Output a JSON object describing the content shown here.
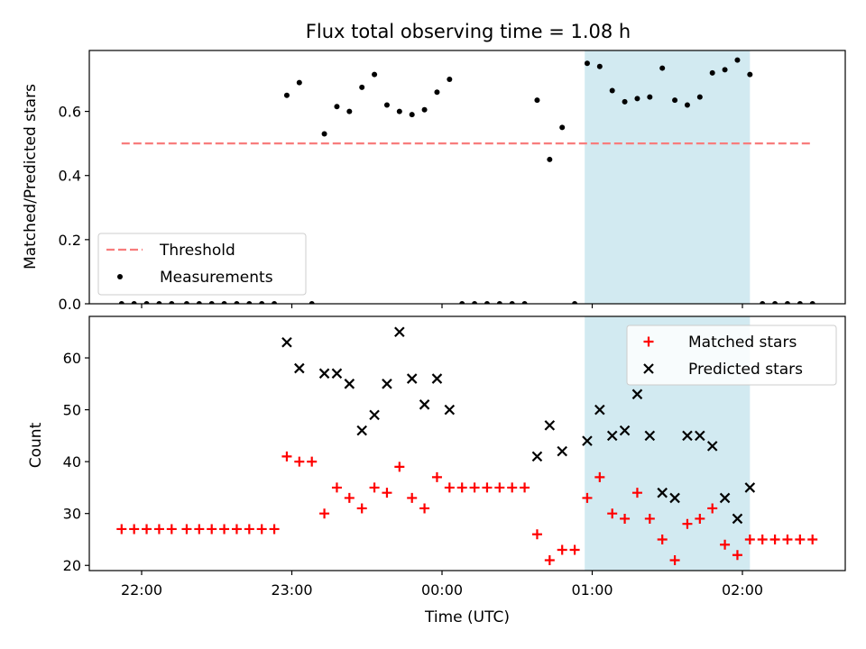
{
  "title": "Flux total observing time = 1.08 h",
  "colors": {
    "threshold": "#f87c7c",
    "measurement": "#000000",
    "matched": "#ff0000",
    "predicted": "#000000",
    "shade": "#add8e6"
  },
  "chart_data": [
    {
      "type": "scatter",
      "ylabel": "Matched/Predicted stars",
      "ylim": [
        0,
        0.79
      ],
      "yticks": [
        "0.0",
        "0.2",
        "0.4",
        "0.6"
      ],
      "legend_position": "lower-left",
      "shaded_interval": [
        "00:57",
        "02:03"
      ],
      "threshold": {
        "name": "Threshold",
        "x_range": [
          "21:52",
          "02:28"
        ],
        "value": 0.5
      },
      "series": [
        {
          "name": "Measurements",
          "points": [
            [
              "21:52",
              0
            ],
            [
              "21:57",
              0
            ],
            [
              "22:02",
              0
            ],
            [
              "22:07",
              0
            ],
            [
              "22:12",
              0
            ],
            [
              "22:18",
              0
            ],
            [
              "22:23",
              0
            ],
            [
              "22:28",
              0
            ],
            [
              "22:33",
              0
            ],
            [
              "22:38",
              0
            ],
            [
              "22:43",
              0
            ],
            [
              "22:48",
              0
            ],
            [
              "22:53",
              0
            ],
            [
              "22:58",
              0.65
            ],
            [
              "23:03",
              0.69
            ],
            [
              "23:08",
              0
            ],
            [
              "23:13",
              0.53
            ],
            [
              "23:18",
              0.615
            ],
            [
              "23:23",
              0.6
            ],
            [
              "23:28",
              0.675
            ],
            [
              "23:33",
              0.715
            ],
            [
              "23:38",
              0.62
            ],
            [
              "23:43",
              0.6
            ],
            [
              "23:48",
              0.59
            ],
            [
              "23:53",
              0.605
            ],
            [
              "23:58",
              0.66
            ],
            [
              "00:03",
              0.7
            ],
            [
              "00:08",
              0
            ],
            [
              "00:13",
              0
            ],
            [
              "00:18",
              0
            ],
            [
              "00:23",
              0
            ],
            [
              "00:28",
              0
            ],
            [
              "00:33",
              0
            ],
            [
              "00:38",
              0.635
            ],
            [
              "00:43",
              0.45
            ],
            [
              "00:48",
              0.55
            ],
            [
              "00:53",
              0
            ],
            [
              "00:58",
              0.75
            ],
            [
              "01:03",
              0.74
            ],
            [
              "01:08",
              0.665
            ],
            [
              "01:13",
              0.63
            ],
            [
              "01:18",
              0.64
            ],
            [
              "01:23",
              0.645
            ],
            [
              "01:28",
              0.735
            ],
            [
              "01:33",
              0.635
            ],
            [
              "01:38",
              0.62
            ],
            [
              "01:43",
              0.645
            ],
            [
              "01:48",
              0.72
            ],
            [
              "01:53",
              0.73
            ],
            [
              "01:58",
              0.76
            ],
            [
              "02:03",
              0.715
            ],
            [
              "02:08",
              0
            ],
            [
              "02:13",
              0
            ],
            [
              "02:18",
              0
            ],
            [
              "02:23",
              0
            ],
            [
              "02:28",
              0
            ]
          ]
        }
      ]
    },
    {
      "type": "scatter",
      "xlabel": "Time (UTC)",
      "ylabel": "Count",
      "ylim": [
        19,
        68
      ],
      "yticks": [
        "20",
        "30",
        "40",
        "50",
        "60"
      ],
      "xticks": [
        "22:00",
        "23:00",
        "00:00",
        "01:00",
        "02:00"
      ],
      "legend_position": "top-right",
      "shaded_interval": [
        "00:57",
        "02:03"
      ],
      "series": [
        {
          "name": "Matched stars",
          "marker": "+",
          "points": [
            [
              "21:52",
              27
            ],
            [
              "21:57",
              27
            ],
            [
              "22:02",
              27
            ],
            [
              "22:07",
              27
            ],
            [
              "22:12",
              27
            ],
            [
              "22:18",
              27
            ],
            [
              "22:23",
              27
            ],
            [
              "22:28",
              27
            ],
            [
              "22:33",
              27
            ],
            [
              "22:38",
              27
            ],
            [
              "22:43",
              27
            ],
            [
              "22:48",
              27
            ],
            [
              "22:53",
              27
            ],
            [
              "22:58",
              41
            ],
            [
              "23:03",
              40
            ],
            [
              "23:08",
              40
            ],
            [
              "23:13",
              30
            ],
            [
              "23:18",
              35
            ],
            [
              "23:23",
              33
            ],
            [
              "23:28",
              31
            ],
            [
              "23:33",
              35
            ],
            [
              "23:38",
              34
            ],
            [
              "23:43",
              39
            ],
            [
              "23:48",
              33
            ],
            [
              "23:53",
              31
            ],
            [
              "23:58",
              37
            ],
            [
              "00:03",
              35
            ],
            [
              "00:08",
              35
            ],
            [
              "00:13",
              35
            ],
            [
              "00:18",
              35
            ],
            [
              "00:23",
              35
            ],
            [
              "00:28",
              35
            ],
            [
              "00:33",
              35
            ],
            [
              "00:38",
              26
            ],
            [
              "00:43",
              21
            ],
            [
              "00:48",
              23
            ],
            [
              "00:53",
              23
            ],
            [
              "00:58",
              33
            ],
            [
              "01:03",
              37
            ],
            [
              "01:08",
              30
            ],
            [
              "01:13",
              29
            ],
            [
              "01:18",
              34
            ],
            [
              "01:23",
              29
            ],
            [
              "01:28",
              25
            ],
            [
              "01:33",
              21
            ],
            [
              "01:38",
              28
            ],
            [
              "01:43",
              29
            ],
            [
              "01:48",
              31
            ],
            [
              "01:53",
              24
            ],
            [
              "01:58",
              22
            ],
            [
              "02:03",
              25
            ],
            [
              "02:08",
              25
            ],
            [
              "02:13",
              25
            ],
            [
              "02:18",
              25
            ],
            [
              "02:23",
              25
            ],
            [
              "02:28",
              25
            ]
          ]
        },
        {
          "name": "Predicted stars",
          "marker": "x",
          "points": [
            [
              "22:58",
              63
            ],
            [
              "23:03",
              58
            ],
            [
              "23:13",
              57
            ],
            [
              "23:18",
              57
            ],
            [
              "23:23",
              55
            ],
            [
              "23:28",
              46
            ],
            [
              "23:33",
              49
            ],
            [
              "23:38",
              55
            ],
            [
              "23:43",
              65
            ],
            [
              "23:48",
              56
            ],
            [
              "23:53",
              51
            ],
            [
              "23:58",
              56
            ],
            [
              "00:03",
              50
            ],
            [
              "00:38",
              41
            ],
            [
              "00:43",
              47
            ],
            [
              "00:48",
              42
            ],
            [
              "00:58",
              44
            ],
            [
              "01:03",
              50
            ],
            [
              "01:08",
              45
            ],
            [
              "01:13",
              46
            ],
            [
              "01:18",
              53
            ],
            [
              "01:23",
              45
            ],
            [
              "01:28",
              34
            ],
            [
              "01:33",
              33
            ],
            [
              "01:38",
              45
            ],
            [
              "01:43",
              45
            ],
            [
              "01:48",
              43
            ],
            [
              "01:53",
              33
            ],
            [
              "01:58",
              29
            ],
            [
              "02:03",
              35
            ]
          ]
        }
      ]
    }
  ]
}
